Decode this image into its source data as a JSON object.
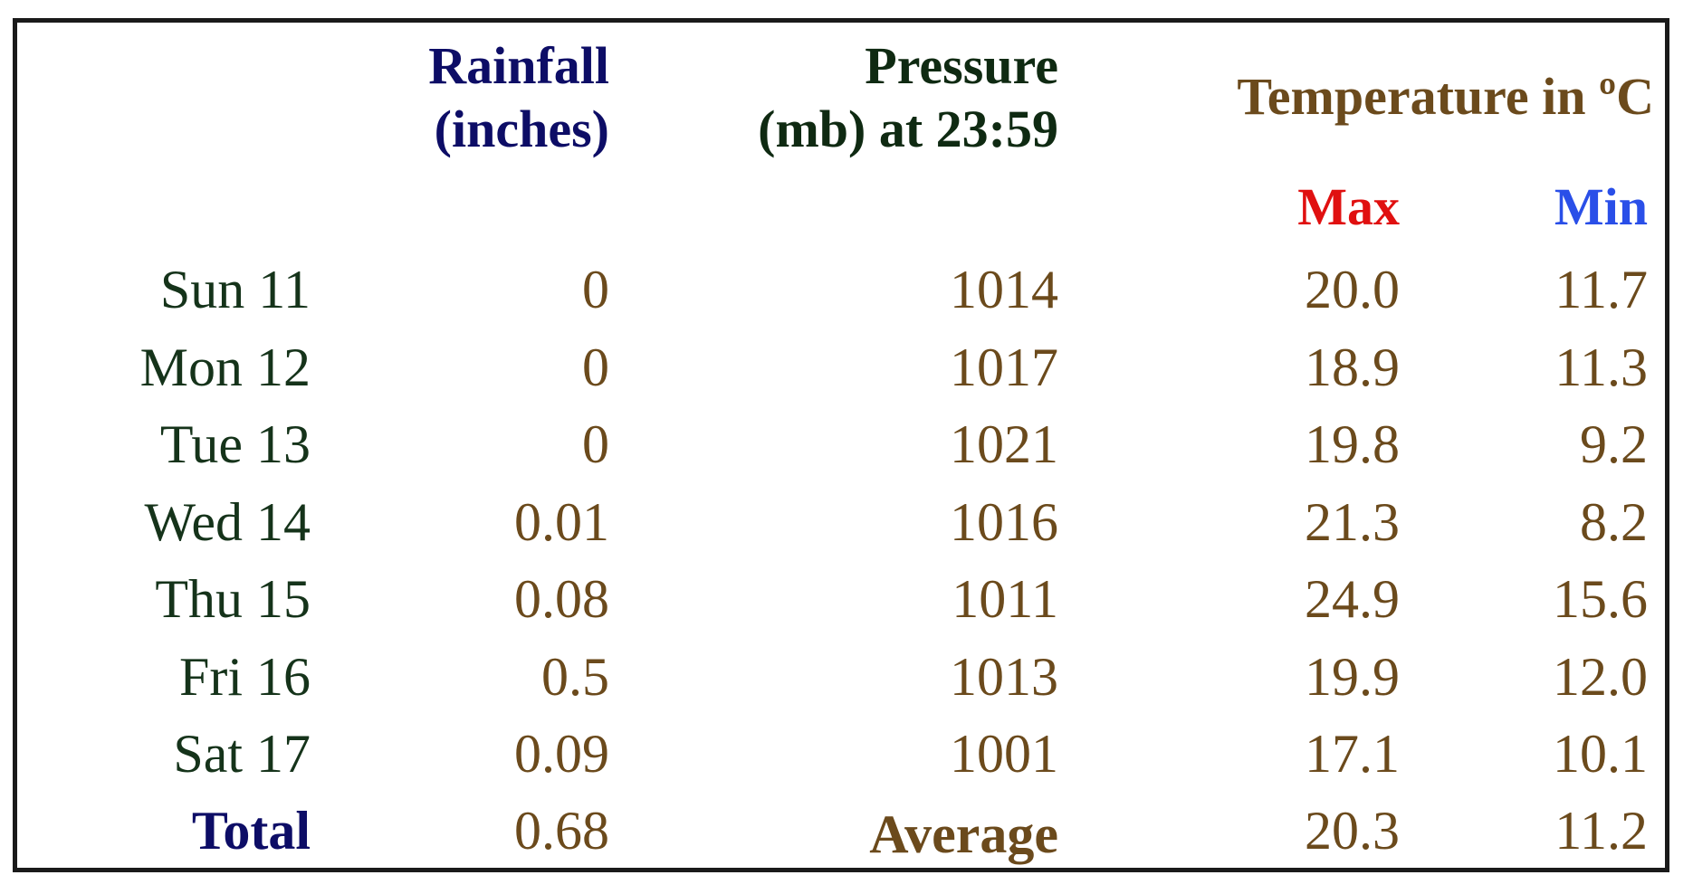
{
  "headers": {
    "rainfall_line1": "Rainfall",
    "rainfall_line2": "(inches)",
    "pressure_line1": "Pressure",
    "pressure_line2": "(mb) at 23:59",
    "temperature": "Temperature in ºC",
    "max": "Max",
    "min": "Min"
  },
  "rows": [
    {
      "day": "Sun 11",
      "rainfall": "0",
      "pressure": "1014",
      "max": "20.0",
      "min": "11.7"
    },
    {
      "day": "Mon 12",
      "rainfall": "0",
      "pressure": "1017",
      "max": "18.9",
      "min": "11.3"
    },
    {
      "day": "Tue 13",
      "rainfall": "0",
      "pressure": "1021",
      "max": "19.8",
      "min": "9.2"
    },
    {
      "day": "Wed 14",
      "rainfall": "0.01",
      "pressure": "1016",
      "max": "21.3",
      "min": "8.2"
    },
    {
      "day": "Thu 15",
      "rainfall": "0.08",
      "pressure": "1011",
      "max": "24.9",
      "min": "15.6"
    },
    {
      "day": "Fri 16",
      "rainfall": "0.5",
      "pressure": "1013",
      "max": "19.9",
      "min": "12.0"
    },
    {
      "day": "Sat 17",
      "rainfall": "0.09",
      "pressure": "1001",
      "max": "17.1",
      "min": "10.1"
    }
  ],
  "summary": {
    "total_label": "Total",
    "rainfall_total": "0.68",
    "average_label": "Average",
    "max_average": "20.3",
    "min_average": "11.2"
  },
  "colors": {
    "header_rainfall": "#0d0d66",
    "header_pressure": "#0f2a12",
    "header_temperature": "#6b4a1c",
    "max": "#e01010",
    "min": "#2a4fe8",
    "values": "#6b4a1c",
    "days": "#15331a"
  }
}
